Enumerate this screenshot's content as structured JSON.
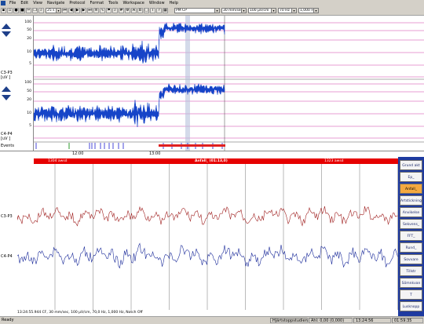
{
  "menu": [
    "File",
    "Edit",
    "View",
    "Navigate",
    "Protocol",
    "Format",
    "Tools",
    "Workspace",
    "Window",
    "Help"
  ],
  "toolbar": {
    "zoom": "25 s",
    "montage": "PM CP",
    "speed": "30 mm/sec",
    "scale": "100 µV/cm",
    "lowpass": "70 Hz",
    "highpass": "1,000 Hz"
  },
  "channels": [
    {
      "name": "C3-P3",
      "unit": "[uV ]"
    },
    {
      "name": "C4-P4",
      "unit": "[uV ]"
    }
  ],
  "axis_ticks": [
    "100",
    "50",
    "20",
    "10",
    "5"
  ],
  "events_label": "Events",
  "times": [
    "12:00",
    "13:00"
  ],
  "epoch": {
    "left": "1304 awsd",
    "center": "Anfall_ (01:13,0)",
    "right": "1323 awsd"
  },
  "lower_channels": [
    "C3-P3",
    "C4-P4"
  ],
  "info_line": "13:24:55.944 CF, 30 mm/sec, 100 µV/cm, 70,0 Hz, 1,000 Hz, Notch Off",
  "side_buttons": [
    "Grund akt",
    "Ep_",
    "Anfall_",
    "Artstickning",
    "Anvikelse",
    "Sekvens_",
    "FFT_",
    "Rund_",
    "Sovvare",
    "Tillstr",
    "Sömnkvan",
    "T",
    "Lusknopp"
  ],
  "status": {
    "left": "Ready",
    "study": "Hjärtstoppstudien",
    "amp": "Ahl: 0,00 (0,000)",
    "time": "13:24:56",
    "elapsed": "01:59:35"
  }
}
